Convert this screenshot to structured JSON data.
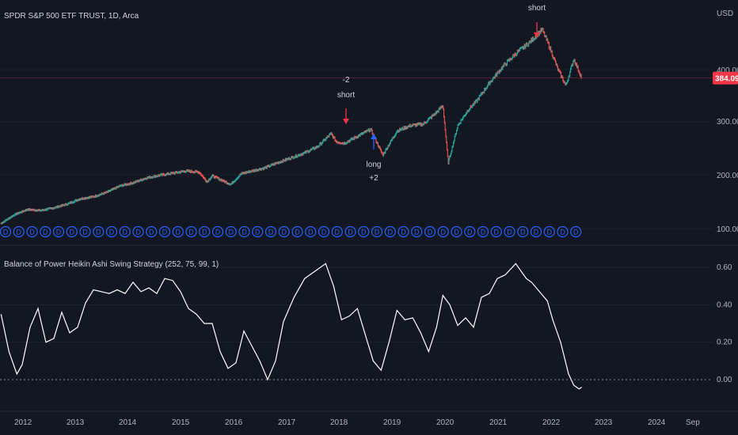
{
  "header": {
    "symbol_title": "SPDR S&P 500 ETF TRUST, 1D, Arca",
    "indicator_title": "Balance of Power Heikin Ashi Swing Strategy (252, 75, 99, 1)"
  },
  "price_axis": {
    "currency": "USD",
    "ticks": [
      "400.00",
      "300.00",
      "200.00",
      "100.00"
    ],
    "last_price_label": "384.09",
    "last_price": 384.09
  },
  "oscillator_axis": {
    "ticks": [
      "0.60",
      "0.40",
      "0.20",
      "0.00"
    ]
  },
  "time_axis": {
    "labels": [
      "2012",
      "2013",
      "2014",
      "2015",
      "2016",
      "2017",
      "2018",
      "2019",
      "2020",
      "2021",
      "2022",
      "2023",
      "2024",
      "Sep"
    ]
  },
  "signals": [
    {
      "type": "short",
      "lines": [
        "-2",
        "short"
      ],
      "color": "#f23645"
    },
    {
      "type": "long",
      "lines": [
        "long",
        "+2"
      ],
      "color": "#2962ff"
    },
    {
      "type": "short",
      "lines": [
        "short"
      ],
      "color": "#f23645"
    }
  ],
  "dividend_marker": {
    "label": "D",
    "count": 44,
    "color": "#2962ff"
  },
  "colors": {
    "background": "#131722",
    "grid": "#1e222d",
    "up": "#26a69a",
    "down": "#ef5350",
    "oscillator_line": "#ffffff",
    "price_tag": "#f23645"
  },
  "chart_data": [
    {
      "type": "line",
      "title": "SPDR S&P 500 ETF TRUST, 1D, Arca",
      "xlabel": "",
      "ylabel": "USD",
      "ylim": [
        70,
        500
      ],
      "series": [
        {
          "x": [
            2011.75,
            2012.0,
            2012.25,
            2012.5,
            2012.75,
            2013.0,
            2013.25,
            2013.5,
            2013.75,
            2014.0,
            2014.25,
            2014.5,
            2014.75,
            2015.0,
            2015.25,
            2015.5,
            2015.65,
            2015.75,
            2016.1,
            2016.3,
            2016.5,
            2016.75,
            2017.0,
            2017.25,
            2017.5,
            2017.75,
            2018.0,
            2018.1,
            2018.25,
            2018.5,
            2018.75,
            2018.98,
            2019.25,
            2019.5,
            2019.75,
            2020.0,
            2020.12,
            2020.22,
            2020.4,
            2020.6,
            2020.75,
            2021.0,
            2021.25,
            2021.5,
            2021.75,
            2022.0,
            2022.15,
            2022.3,
            2022.45,
            2022.6,
            2022.75
          ],
          "values": [
            112,
            128,
            138,
            136,
            141,
            148,
            158,
            162,
            170,
            182,
            188,
            197,
            202,
            206,
            210,
            208,
            190,
            201,
            185,
            205,
            210,
            216,
            226,
            235,
            244,
            256,
            280,
            265,
            262,
            275,
            288,
            240,
            285,
            295,
            298,
            320,
            333,
            225,
            295,
            325,
            340,
            375,
            405,
            430,
            450,
            475,
            440,
            400,
            370,
            420,
            384
          ]
        }
      ]
    },
    {
      "type": "line",
      "title": "Balance of Power Heikin Ashi Swing Strategy (252, 75, 99, 1)",
      "xlabel": "",
      "ylabel": "",
      "ylim": [
        -0.1,
        0.65
      ],
      "series": [
        {
          "x": [
            2011.75,
            2011.9,
            2012.05,
            2012.15,
            2012.3,
            2012.45,
            2012.6,
            2012.75,
            2012.9,
            2013.05,
            2013.2,
            2013.35,
            2013.5,
            2013.65,
            2013.8,
            2013.95,
            2014.1,
            2014.25,
            2014.4,
            2014.55,
            2014.7,
            2014.85,
            2015.0,
            2015.15,
            2015.3,
            2015.45,
            2015.6,
            2015.75,
            2015.9,
            2016.05,
            2016.2,
            2016.35,
            2016.5,
            2016.65,
            2016.8,
            2016.95,
            2017.1,
            2017.3,
            2017.5,
            2017.7,
            2017.9,
            2018.05,
            2018.2,
            2018.35,
            2018.5,
            2018.65,
            2018.8,
            2018.95,
            2019.1,
            2019.25,
            2019.4,
            2019.55,
            2019.7,
            2019.85,
            2020.0,
            2020.12,
            2020.25,
            2020.4,
            2020.55,
            2020.7,
            2020.85,
            2021.0,
            2021.15,
            2021.3,
            2021.5,
            2021.7,
            2021.8,
            2021.95,
            2022.1,
            2022.2,
            2022.35,
            2022.5,
            2022.6,
            2022.7,
            2022.75
          ],
          "values": [
            0.35,
            0.15,
            0.03,
            0.08,
            0.28,
            0.38,
            0.2,
            0.22,
            0.36,
            0.25,
            0.28,
            0.41,
            0.48,
            0.47,
            0.46,
            0.48,
            0.46,
            0.52,
            0.47,
            0.49,
            0.46,
            0.54,
            0.53,
            0.47,
            0.38,
            0.35,
            0.3,
            0.3,
            0.15,
            0.06,
            0.09,
            0.26,
            0.18,
            0.1,
            0.0,
            0.1,
            0.31,
            0.44,
            0.54,
            0.58,
            0.62,
            0.5,
            0.32,
            0.34,
            0.38,
            0.24,
            0.1,
            0.05,
            0.2,
            0.37,
            0.32,
            0.33,
            0.25,
            0.15,
            0.28,
            0.45,
            0.4,
            0.29,
            0.33,
            0.28,
            0.44,
            0.46,
            0.54,
            0.56,
            0.62,
            0.54,
            0.52,
            0.47,
            0.42,
            0.32,
            0.2,
            0.03,
            -0.03,
            -0.05,
            -0.04
          ]
        }
      ]
    }
  ]
}
